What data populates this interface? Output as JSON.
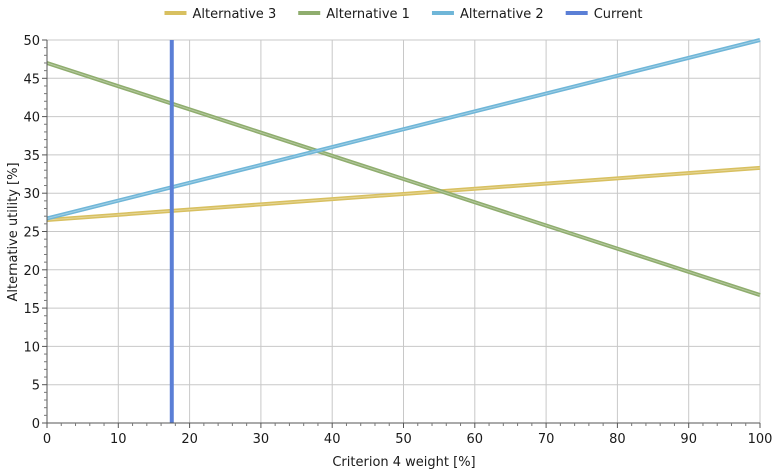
{
  "chart_data": {
    "type": "line",
    "xlabel": "Criterion 4 weight [%]",
    "ylabel": "Alternative utility [%]",
    "xlim": [
      0,
      100
    ],
    "ylim": [
      0,
      50
    ],
    "xticks": [
      0,
      10,
      20,
      30,
      40,
      50,
      60,
      70,
      80,
      90,
      100
    ],
    "yticks": [
      0,
      5,
      10,
      15,
      20,
      25,
      30,
      35,
      40,
      45,
      50
    ],
    "grid": true,
    "legend_position": "top",
    "series": [
      {
        "name": "Alternative 3",
        "color": "#d8c060",
        "points": [
          [
            0,
            26.5
          ],
          [
            100,
            33.3
          ]
        ]
      },
      {
        "name": "Alternative 1",
        "color": "#8fad6e",
        "points": [
          [
            0,
            47
          ],
          [
            100,
            16.7
          ]
        ]
      },
      {
        "name": "Alternative 2",
        "color": "#6fb6d8",
        "points": [
          [
            0,
            26.7
          ],
          [
            100,
            50
          ]
        ]
      },
      {
        "name": "Current",
        "color": "#5b7fd6",
        "vertical_line": 17.5
      }
    ]
  }
}
